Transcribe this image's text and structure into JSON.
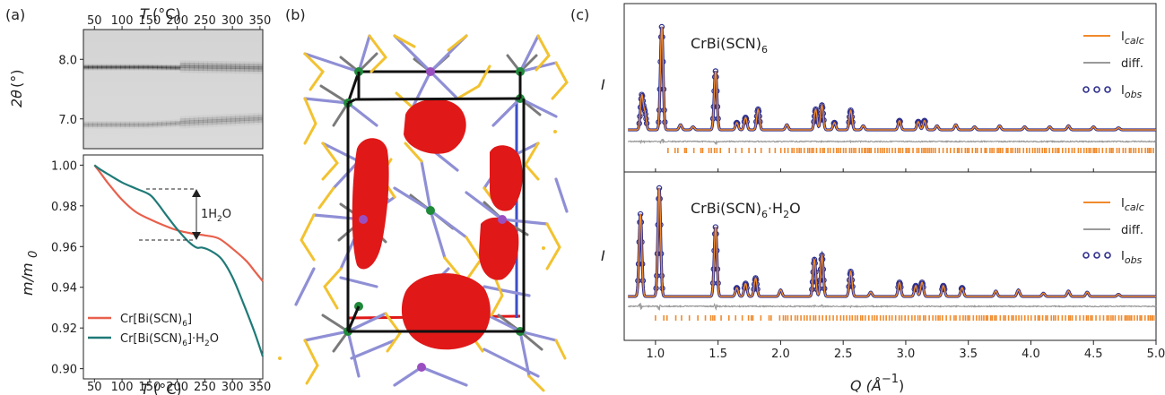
{
  "panel_labels": {
    "a": "(a)",
    "b": "(b)",
    "c": "(c)"
  },
  "colors": {
    "red_curve": "#e8604c",
    "teal_curve": "#1f7a78",
    "calc": "#f08a2c",
    "obs": "#2e2f8c",
    "diff": "#9a9a9a",
    "ticks": "#f08a2c",
    "blob": "#e01818",
    "bond_blue": "#8f8fd6",
    "bond_yellow": "#f2c230",
    "bond_grey": "#7a7a7a",
    "cr": "#1f8a3a",
    "bi": "#9a4fc0"
  },
  "panel_a_top": {
    "xlabel_T": "T",
    "xlabel_unit": "(°C)",
    "x_ticks": [
      "50",
      "100",
      "150",
      "200",
      "250",
      "300",
      "350"
    ],
    "ylabel_theta": "2θ",
    "ylabel_unit": "(°)",
    "y_ticks": [
      "8.0",
      "7.0"
    ]
  },
  "panel_a_bottom": {
    "xlabel_T": "T",
    "xlabel_unit": "(°C)",
    "ylabel": "m/m",
    "ylabel_sub": "0",
    "y_ticks": [
      "1.00",
      "0.98",
      "0.96",
      "0.94",
      "0.92",
      "0.90"
    ],
    "x_ticks": [
      "50",
      "100",
      "150",
      "200",
      "250",
      "300",
      "350"
    ],
    "annotation": "1H",
    "annotation_sub": "2",
    "annotation_tail": "O",
    "legend": [
      {
        "main": "Cr[Bi(SCN)",
        "sub": "6",
        "tail": "]"
      },
      {
        "main": "Cr[Bi(SCN)",
        "sub": "6",
        "tail": "]·H",
        "sub2": "2",
        "tail2": "O"
      }
    ]
  },
  "panel_c": {
    "top_title": "CrBi(SCN)",
    "top_title_sub": "6",
    "bottom_title": "CrBi(SCN)",
    "bottom_title_sub": "6",
    "bottom_title_tail": "·H",
    "bottom_title_sub2": "2",
    "bottom_title_tail2": "O",
    "ylabel": "I",
    "legend": [
      "I",
      "diff.",
      "I"
    ],
    "legend_subs": [
      "calc",
      "",
      "obs"
    ],
    "x_ticks": [
      "1.0",
      "1.5",
      "2.0",
      "2.5",
      "3.0",
      "3.5",
      "4.0",
      "4.5",
      "5.0"
    ],
    "xlabel": "Q (Å",
    "xlabel_sup": "−1",
    "xlabel_tail": ")"
  },
  "chart_data": [
    {
      "type": "heatmap",
      "panel": "a-top",
      "xlim": [
        30,
        355
      ],
      "ylim": [
        6.5,
        8.5
      ],
      "bands": [
        {
          "y_start": 7.85,
          "y_end": 7.82,
          "strength": 0.9
        },
        {
          "y_start": 6.88,
          "y_end": 6.97,
          "strength": 0.45
        }
      ]
    },
    {
      "type": "line",
      "panel": "a-bottom",
      "xlim": [
        30,
        355
      ],
      "ylim": [
        0.895,
        1.005
      ],
      "series": [
        {
          "name": "Cr[Bi(SCN)6]",
          "x": [
            50,
            60,
            75,
            100,
            125,
            150,
            175,
            200,
            225,
            250,
            275,
            300,
            325,
            340,
            355
          ],
          "y": [
            1.0,
            0.9965,
            0.991,
            0.983,
            0.977,
            0.9735,
            0.9705,
            0.968,
            0.9665,
            0.9655,
            0.964,
            0.959,
            0.953,
            0.948,
            0.943
          ]
        },
        {
          "name": "Cr[Bi(SCN)6]·H2O",
          "x": [
            50,
            60,
            75,
            100,
            125,
            150,
            165,
            180,
            200,
            220,
            235,
            245,
            260,
            280,
            300,
            320,
            340,
            355
          ],
          "y": [
            1.0,
            0.998,
            0.9955,
            0.9915,
            0.9885,
            0.9855,
            0.981,
            0.9755,
            0.9685,
            0.9625,
            0.9595,
            0.9595,
            0.958,
            0.954,
            0.945,
            0.932,
            0.918,
            0.906
          ]
        }
      ]
    },
    {
      "type": "line",
      "panel": "c-top",
      "xlim": [
        0.75,
        5.0
      ],
      "peaks": [
        [
          0.89,
          0.33
        ],
        [
          0.915,
          0.16
        ],
        [
          1.05,
          1.0
        ],
        [
          1.2,
          0.05
        ],
        [
          1.3,
          0.03
        ],
        [
          1.48,
          0.57
        ],
        [
          1.65,
          0.07
        ],
        [
          1.72,
          0.12
        ],
        [
          1.82,
          0.2
        ],
        [
          2.05,
          0.05
        ],
        [
          2.28,
          0.2
        ],
        [
          2.33,
          0.24
        ],
        [
          2.43,
          0.07
        ],
        [
          2.56,
          0.19
        ],
        [
          2.66,
          0.04
        ],
        [
          2.95,
          0.09
        ],
        [
          3.1,
          0.08
        ],
        [
          3.15,
          0.09
        ],
        [
          3.25,
          0.04
        ],
        [
          3.4,
          0.05
        ],
        [
          3.55,
          0.03
        ],
        [
          3.75,
          0.04
        ],
        [
          3.95,
          0.03
        ],
        [
          4.15,
          0.03
        ],
        [
          4.3,
          0.04
        ],
        [
          4.5,
          0.03
        ],
        [
          4.7,
          0.02
        ]
      ],
      "reflection_ticks_from": 1.1,
      "reflection_ticks_to": 5.0
    },
    {
      "type": "line",
      "panel": "c-bottom",
      "xlim": [
        0.75,
        5.0
      ],
      "peaks": [
        [
          0.88,
          0.76
        ],
        [
          1.03,
          1.0
        ],
        [
          1.48,
          0.64
        ],
        [
          1.65,
          0.08
        ],
        [
          1.72,
          0.12
        ],
        [
          1.8,
          0.17
        ],
        [
          2.0,
          0.06
        ],
        [
          2.27,
          0.34
        ],
        [
          2.33,
          0.38
        ],
        [
          2.56,
          0.23
        ],
        [
          2.72,
          0.04
        ],
        [
          2.95,
          0.13
        ],
        [
          3.08,
          0.1
        ],
        [
          3.13,
          0.13
        ],
        [
          3.3,
          0.1
        ],
        [
          3.45,
          0.08
        ],
        [
          3.72,
          0.05
        ],
        [
          3.9,
          0.06
        ],
        [
          4.1,
          0.03
        ],
        [
          4.3,
          0.05
        ],
        [
          4.45,
          0.04
        ],
        [
          4.7,
          0.02
        ]
      ],
      "reflection_ticks_from": 1.0,
      "reflection_ticks_to": 5.0
    }
  ]
}
